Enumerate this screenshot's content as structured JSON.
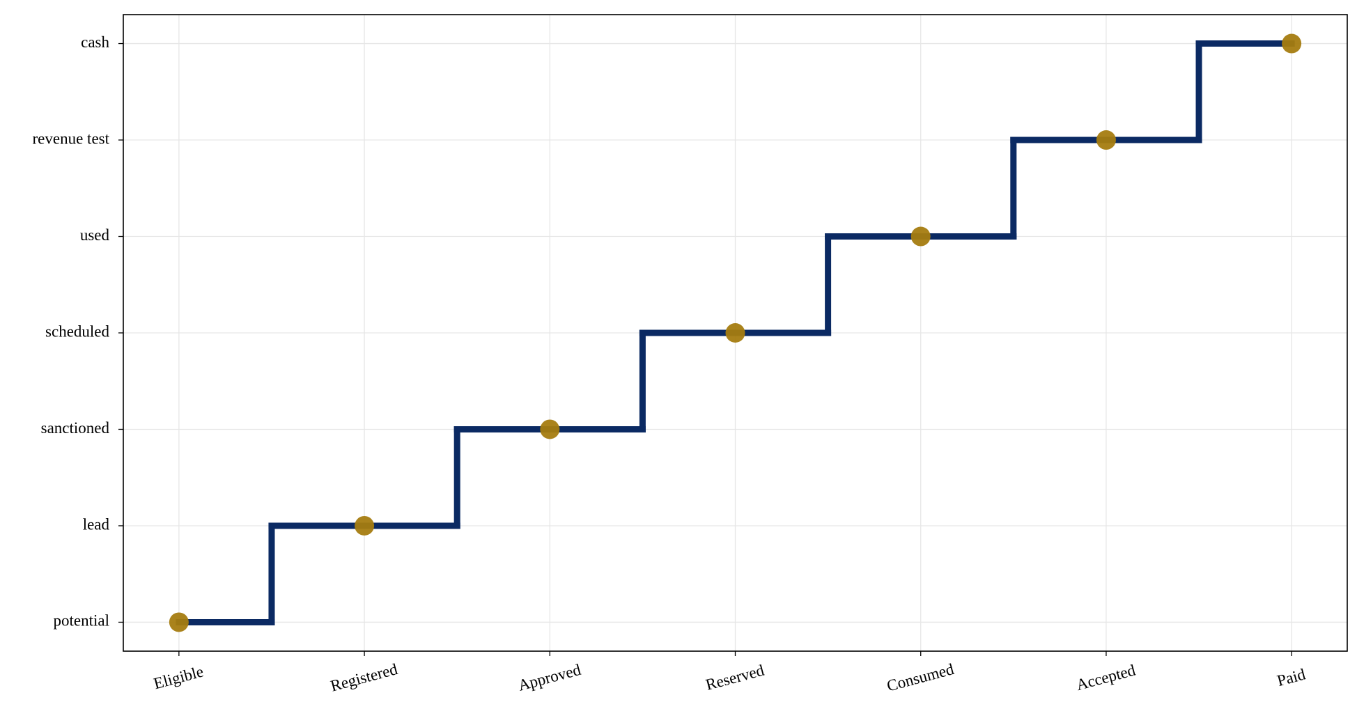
{
  "chart_data": {
    "type": "step",
    "categories": [
      "Eligible",
      "Registered",
      "Approved",
      "Reserved",
      "Consumed",
      "Accepted",
      "Paid"
    ],
    "values": [
      0,
      1,
      2,
      3,
      4,
      5,
      6
    ],
    "color": "#0b2a63",
    "marker_color": "#a57c10",
    "xlim": [
      -0.3,
      6.3
    ],
    "ylim": [
      -0.3,
      6.3
    ],
    "yticks": [
      {
        "value": 0,
        "label": "potential"
      },
      {
        "value": 1,
        "label": "lead"
      },
      {
        "value": 2,
        "label": "sanctioned"
      },
      {
        "value": 3,
        "label": "scheduled"
      },
      {
        "value": 4,
        "label": "used"
      },
      {
        "value": 5,
        "label": "revenue test"
      },
      {
        "value": 6,
        "label": "cash"
      }
    ],
    "grid": true
  }
}
